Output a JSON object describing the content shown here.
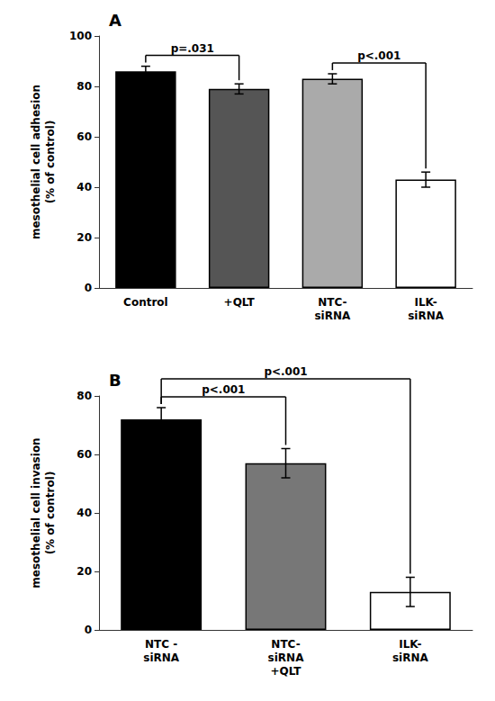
{
  "chart_data": [
    {
      "type": "bar",
      "title": "A",
      "categories": [
        "Control",
        "+QLT",
        "NTC-\nsiRNA",
        "ILK-\nsiRNA"
      ],
      "values": [
        86,
        79,
        83,
        43
      ],
      "errors": [
        2,
        2,
        2,
        3
      ],
      "colors": [
        "#000000",
        "#555555",
        "#aaaaaa",
        "#ffffff"
      ],
      "ylabel": "mesothelial cell adhesion\n(% of control)",
      "ylim": [
        0,
        100
      ],
      "yticks": [
        0,
        20,
        40,
        60,
        80,
        100
      ],
      "grid": false,
      "annotations": [
        {
          "text": "p=.031",
          "between": [
            "Control",
            "+QLT"
          ]
        },
        {
          "text": "p<.001",
          "between": [
            "NTC-\nsiRNA",
            "ILK-\nsiRNA"
          ]
        }
      ]
    },
    {
      "type": "bar",
      "title": "B",
      "categories": [
        "NTC -\nsiRNA",
        "NTC-\nsiRNA\n+QLT",
        "ILK-\nsiRNA"
      ],
      "values": [
        72,
        57,
        13
      ],
      "errors": [
        4,
        5,
        5
      ],
      "colors": [
        "#000000",
        "#777777",
        "#ffffff"
      ],
      "ylabel": "mesothelial cell invasion\n(% of control)",
      "ylim": [
        0,
        80
      ],
      "yticks": [
        0,
        20,
        40,
        60,
        80
      ],
      "grid": false,
      "annotations": [
        {
          "text": "p<.001",
          "between": [
            "NTC -\nsiRNA",
            "NTC-\nsiRNA\n+QLT"
          ]
        },
        {
          "text": "p<.001",
          "between": [
            "NTC -\nsiRNA",
            "ILK-\nsiRNA"
          ]
        }
      ]
    }
  ]
}
